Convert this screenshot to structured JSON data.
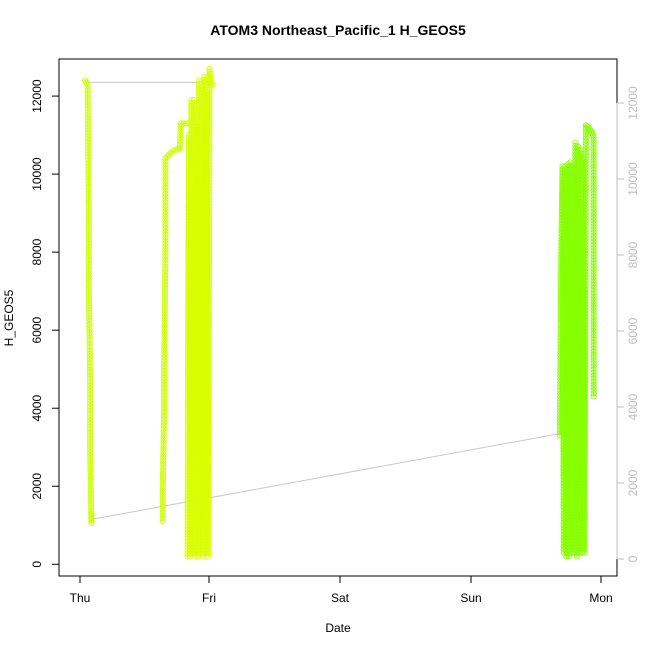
{
  "chart_data": {
    "type": "scatter",
    "title": "ATOM3 Northeast_Pacific_1 H_GEOS5",
    "xlabel": "Date",
    "ylabel": "H_GEOS5",
    "x_ticks": [
      "Thu",
      "Fri",
      "Sat",
      "Sun",
      "Mon"
    ],
    "x_range_days": [
      -0.2,
      4.1
    ],
    "ylim": [
      -300,
      12950
    ],
    "y_ticks": [
      0,
      2000,
      4000,
      6000,
      8000,
      10000,
      12000
    ],
    "y_ticks_right": [
      0,
      2000,
      4000,
      6000,
      8000,
      10000,
      12000
    ],
    "grid": false,
    "connector_color": "#c8c8c8",
    "axis_color_right": "#bdbdbd",
    "segments": [
      {
        "color": "#ccff00",
        "points": [
          [
            0.0,
            12400
          ],
          [
            0.02,
            12300
          ],
          [
            0.03,
            9000
          ],
          [
            0.03,
            7000
          ],
          [
            0.035,
            6000
          ],
          [
            0.04,
            4500
          ],
          [
            0.04,
            3000
          ],
          [
            0.045,
            2000
          ],
          [
            0.05,
            1050
          ],
          [
            0.05,
            1300
          ]
        ]
      },
      {
        "color": "#ccff00",
        "points": [
          [
            0.6,
            1100
          ],
          [
            0.6,
            2000
          ],
          [
            0.61,
            4000
          ],
          [
            0.61,
            5000
          ],
          [
            0.62,
            8000
          ],
          [
            0.62,
            10400
          ],
          [
            0.65,
            10500
          ],
          [
            0.68,
            10600
          ],
          [
            0.72,
            10650
          ],
          [
            0.73,
            10650
          ],
          [
            0.74,
            11300
          ],
          [
            0.78,
            11300
          ],
          [
            0.79,
            11300
          ]
        ]
      },
      {
        "color": "#d8ff00",
        "points": [
          [
            0.79,
            200
          ],
          [
            0.8,
            11000
          ],
          [
            0.81,
            200
          ],
          [
            0.82,
            11900
          ],
          [
            0.83,
            300
          ],
          [
            0.84,
            11900
          ],
          [
            0.85,
            200
          ],
          [
            0.86,
            11300
          ],
          [
            0.87,
            200
          ],
          [
            0.88,
            12400
          ],
          [
            0.89,
            300
          ],
          [
            0.9,
            12200
          ],
          [
            0.91,
            200
          ],
          [
            0.92,
            12500
          ],
          [
            0.93,
            300
          ],
          [
            0.94,
            12100
          ],
          [
            0.95,
            200
          ],
          [
            0.96,
            12700
          ],
          [
            0.97,
            12300
          ],
          [
            0.99,
            12300
          ]
        ]
      },
      {
        "color": "#88ff00",
        "points": [
          [
            3.66,
            3300
          ],
          [
            3.67,
            7800
          ],
          [
            3.68,
            10200
          ],
          [
            3.69,
            300
          ],
          [
            3.7,
            10200
          ],
          [
            3.71,
            200
          ],
          [
            3.72,
            10250
          ],
          [
            3.73,
            200
          ],
          [
            3.74,
            10300
          ],
          [
            3.75,
            300
          ],
          [
            3.76,
            10200
          ],
          [
            3.77,
            300
          ],
          [
            3.78,
            10800
          ],
          [
            3.79,
            200
          ],
          [
            3.8,
            10700
          ],
          [
            3.81,
            300
          ],
          [
            3.82,
            10600
          ],
          [
            3.83,
            300
          ],
          [
            3.84,
            10400
          ],
          [
            3.85,
            300
          ],
          [
            3.86,
            11250
          ],
          [
            3.88,
            11200
          ],
          [
            3.9,
            11100
          ],
          [
            3.91,
            11050
          ],
          [
            3.92,
            10950
          ],
          [
            3.92,
            4300
          ]
        ]
      }
    ],
    "connectors": [
      {
        "points": [
          [
            0.0,
            12350
          ],
          [
            0.99,
            12350
          ]
        ]
      },
      {
        "points": [
          [
            0.05,
            1150
          ],
          [
            3.66,
            3350
          ]
        ]
      }
    ]
  }
}
